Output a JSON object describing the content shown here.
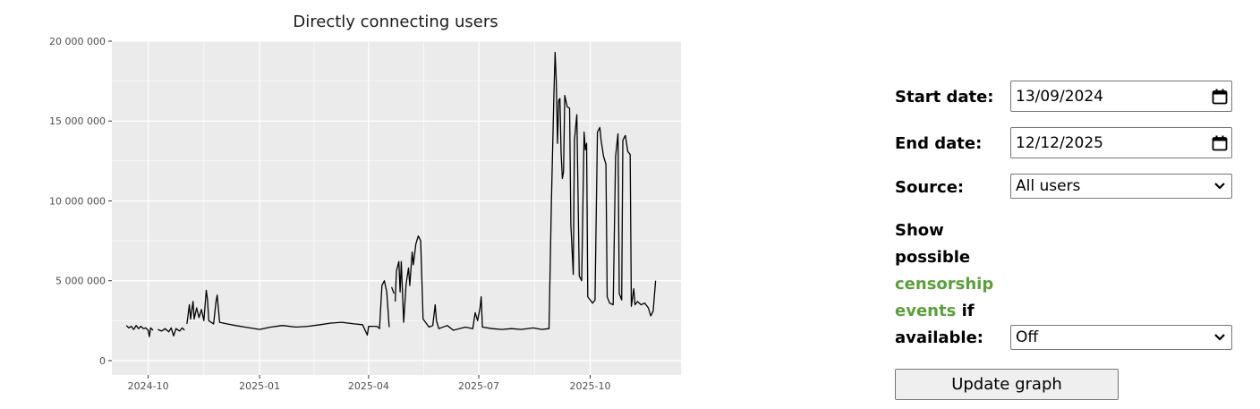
{
  "chart_data": {
    "type": "line",
    "title": "Directly connecting users",
    "xlabel": "",
    "ylabel": "",
    "x_ticks": [
      "2024-10",
      "2025-01",
      "2025-04",
      "2025-07",
      "2025-10"
    ],
    "y_ticks": [
      "0",
      "5 000 000",
      "10 000 000",
      "15 000 000",
      "20 000 000"
    ],
    "ylim": [
      -900000,
      20000000
    ],
    "xlim": [
      "2024-09-01",
      "2025-12-15"
    ],
    "grid": true,
    "series": [
      {
        "segments": [
          [
            [
              "2024-09-13",
              2200000
            ],
            [
              "2024-09-15",
              2050000
            ],
            [
              "2024-09-17",
              2150000
            ],
            [
              "2024-09-19",
              1950000
            ],
            [
              "2024-09-21",
              2200000
            ],
            [
              "2024-09-23",
              2000000
            ],
            [
              "2024-09-25",
              2150000
            ],
            [
              "2024-09-27",
              2000000
            ],
            [
              "2024-09-29",
              2050000
            ],
            [
              "2024-10-01",
              1900000
            ],
            [
              "2024-10-02",
              1500000
            ],
            [
              "2024-10-03",
              2050000
            ],
            [
              "2024-10-05",
              1900000
            ]
          ],
          [
            [
              "2024-10-09",
              1950000
            ],
            [
              "2024-10-12",
              1850000
            ],
            [
              "2024-10-15",
              2000000
            ],
            [
              "2024-10-18",
              1800000
            ],
            [
              "2024-10-20",
              2050000
            ],
            [
              "2024-10-22",
              1550000
            ],
            [
              "2024-10-24",
              2000000
            ],
            [
              "2024-10-27",
              1850000
            ],
            [
              "2024-10-29",
              2050000
            ],
            [
              "2024-10-31",
              1900000
            ]
          ],
          [
            [
              "2024-11-02",
              2300000
            ],
            [
              "2024-11-04",
              3500000
            ],
            [
              "2024-11-05",
              2600000
            ],
            [
              "2024-11-07",
              3700000
            ],
            [
              "2024-11-08",
              2600000
            ],
            [
              "2024-11-10",
              3300000
            ],
            [
              "2024-11-12",
              2700000
            ],
            [
              "2024-11-14",
              3200000
            ],
            [
              "2024-11-16",
              2500000
            ],
            [
              "2024-11-18",
              4400000
            ],
            [
              "2024-11-19",
              3800000
            ],
            [
              "2024-11-20",
              2500000
            ],
            [
              "2024-11-24",
              2300000
            ],
            [
              "2024-11-26",
              3700000
            ],
            [
              "2024-11-27",
              4100000
            ],
            [
              "2024-11-29",
              2400000
            ],
            [
              "2024-12-05",
              2300000
            ],
            [
              "2024-12-12",
              2200000
            ],
            [
              "2024-12-20",
              2100000
            ],
            [
              "2025-01-01",
              1950000
            ],
            [
              "2025-01-10",
              2100000
            ],
            [
              "2025-01-20",
              2200000
            ],
            [
              "2025-01-31",
              2100000
            ],
            [
              "2025-02-10",
              2150000
            ],
            [
              "2025-02-20",
              2250000
            ],
            [
              "2025-03-01",
              2350000
            ],
            [
              "2025-03-10",
              2400000
            ],
            [
              "2025-03-20",
              2300000
            ],
            [
              "2025-03-27",
              2250000
            ],
            [
              "2025-03-31",
              1600000
            ],
            [
              "2025-04-01",
              2150000
            ],
            [
              "2025-04-08",
              2150000
            ],
            [
              "2025-04-10",
              2000000
            ],
            [
              "2025-04-12",
              4700000
            ],
            [
              "2025-04-14",
              5000000
            ],
            [
              "2025-04-16",
              4300000
            ],
            [
              "2025-04-18",
              2100000
            ]
          ],
          [
            [
              "2025-04-20",
              4600000
            ],
            [
              "2025-04-22",
              4200000
            ]
          ],
          [
            [
              "2025-04-23",
              3700000
            ],
            [
              "2025-04-24",
              5600000
            ],
            [
              "2025-04-26",
              6200000
            ],
            [
              "2025-04-27",
              4300000
            ],
            [
              "2025-04-28",
              6200000
            ],
            [
              "2025-04-30",
              2400000
            ],
            [
              "2025-05-02",
              4800000
            ],
            [
              "2025-05-04",
              5800000
            ],
            [
              "2025-05-05",
              4700000
            ],
            [
              "2025-05-07",
              6800000
            ],
            [
              "2025-05-08",
              6000000
            ],
            [
              "2025-05-10",
              7300000
            ],
            [
              "2025-05-12",
              7800000
            ],
            [
              "2025-05-14",
              7500000
            ],
            [
              "2025-05-16",
              2600000
            ],
            [
              "2025-05-18",
              2400000
            ],
            [
              "2025-05-21",
              2100000
            ],
            [
              "2025-05-24",
              2200000
            ],
            [
              "2025-05-26",
              3500000
            ],
            [
              "2025-05-27",
              2500000
            ],
            [
              "2025-05-29",
              2000000
            ],
            [
              "2025-06-05",
              2200000
            ],
            [
              "2025-06-10",
              1900000
            ],
            [
              "2025-06-20",
              2100000
            ],
            [
              "2025-06-26",
              2000000
            ],
            [
              "2025-06-28",
              3000000
            ],
            [
              "2025-06-30",
              2500000
            ],
            [
              "2025-07-02",
              3300000
            ],
            [
              "2025-07-03",
              4000000
            ],
            [
              "2025-07-04",
              2100000
            ],
            [
              "2025-07-12",
              2000000
            ],
            [
              "2025-07-20",
              1950000
            ],
            [
              "2025-07-28",
              2000000
            ],
            [
              "2025-08-05",
              1950000
            ],
            [
              "2025-08-15",
              2050000
            ],
            [
              "2025-08-22",
              1950000
            ],
            [
              "2025-08-28",
              2000000
            ],
            [
              "2025-08-30",
              10000000
            ],
            [
              "2025-09-01",
              16500000
            ],
            [
              "2025-09-02",
              19300000
            ],
            [
              "2025-09-03",
              17500000
            ],
            [
              "2025-09-04",
              13600000
            ],
            [
              "2025-09-05",
              16300000
            ],
            [
              "2025-09-06",
              16400000
            ],
            [
              "2025-09-07",
              13000000
            ],
            [
              "2025-09-08",
              11400000
            ],
            [
              "2025-09-09",
              11800000
            ],
            [
              "2025-09-10",
              16600000
            ],
            [
              "2025-09-12",
              15900000
            ],
            [
              "2025-09-14",
              15800000
            ],
            [
              "2025-09-15",
              8500000
            ],
            [
              "2025-09-17",
              5400000
            ],
            [
              "2025-09-18",
              13800000
            ],
            [
              "2025-09-20",
              15400000
            ],
            [
              "2025-09-22",
              5300000
            ],
            [
              "2025-09-24",
              5000000
            ],
            [
              "2025-09-26",
              14300000
            ],
            [
              "2025-09-27",
              13200000
            ],
            [
              "2025-09-28",
              13600000
            ],
            [
              "2025-09-29",
              4000000
            ],
            [
              "2025-10-01",
              3800000
            ],
            [
              "2025-10-03",
              3600000
            ],
            [
              "2025-10-05",
              3800000
            ],
            [
              "2025-10-07",
              14300000
            ],
            [
              "2025-10-09",
              14600000
            ],
            [
              "2025-10-10",
              13800000
            ],
            [
              "2025-10-12",
              12800000
            ],
            [
              "2025-10-14",
              12300000
            ],
            [
              "2025-10-15",
              4000000
            ],
            [
              "2025-10-17",
              3600000
            ],
            [
              "2025-10-20",
              3500000
            ],
            [
              "2025-10-22",
              12800000
            ],
            [
              "2025-10-24",
              14200000
            ],
            [
              "2025-10-25",
              4200000
            ],
            [
              "2025-10-27",
              3800000
            ],
            [
              "2025-10-28",
              13800000
            ],
            [
              "2025-10-30",
              14100000
            ],
            [
              "2025-11-01",
              13100000
            ],
            [
              "2025-11-03",
              12900000
            ],
            [
              "2025-11-04",
              3400000
            ],
            [
              "2025-11-06",
              4500000
            ],
            [
              "2025-11-07",
              3500000
            ],
            [
              "2025-11-09",
              3700000
            ],
            [
              "2025-11-12",
              3500000
            ],
            [
              "2025-11-15",
              3600000
            ],
            [
              "2025-11-18",
              3300000
            ],
            [
              "2025-11-20",
              2800000
            ],
            [
              "2025-11-22",
              3100000
            ],
            [
              "2025-11-24",
              5000000
            ]
          ]
        ]
      }
    ]
  },
  "form": {
    "start_label": "Start date:",
    "start_value": "13/09/2024",
    "end_label": "End date:",
    "end_value": "12/12/2025",
    "source_label": "Source:",
    "source_value": "All users",
    "show_line1": "Show",
    "show_line2": "possible",
    "show_link1": "censorship",
    "show_link2": "events",
    "show_line4": " if",
    "show_line5": "available:",
    "events_value": "Off",
    "update_button": "Update graph"
  },
  "colors": {
    "panel": "#ebebeb",
    "grid": "#ffffff",
    "line": "#000000",
    "link": "#5ba03a"
  }
}
